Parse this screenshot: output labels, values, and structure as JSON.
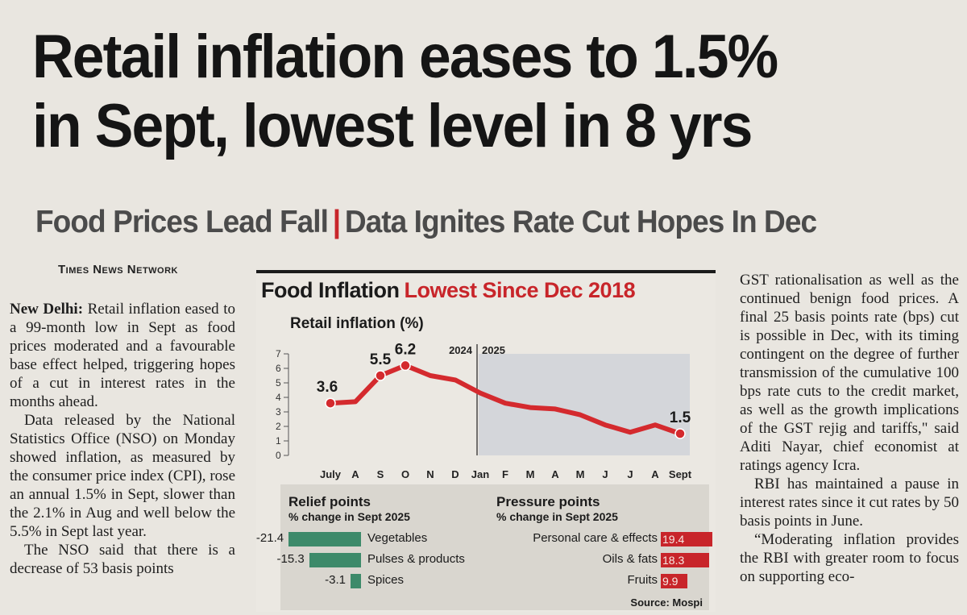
{
  "headline": {
    "line1": "Retail inflation eases to 1.5%",
    "line2": "in Sept, lowest level in 8 yrs"
  },
  "deck": {
    "left": "Food Prices Lead Fall",
    "separator": "|",
    "right": "Data Ignites Rate Cut Hopes In Dec"
  },
  "byline": "Times News Network",
  "left_column": {
    "dateline": "New Delhi:",
    "p1": " Retail inflation eased to a 99-month low in Sept as food prices moderated and a favourable base effect helped, triggering hopes of a cut in interest rates in the months ahead.",
    "p2": "Data released by the National Statistics Office (NSO) on Monday showed inflation, as measured by the consumer price index (CPI), rose an annual 1.5% in Sept, slower than the 2.1% in Aug and well below the 5.5% in Sept last year.",
    "p3": "The NSO said that there is a decrease of 53 basis points"
  },
  "right_column": {
    "p1": "GST rationalisation as well as the continued benign food prices. A final 25 basis points rate (bps) cut is possible in Dec, with its timing contingent on the degree of further transmission of the cumulative 100 bps rate cuts to the credit market, as well as the growth implications of the GST rejig and tariffs,\" said Aditi Nayar, chief economist at ratings agency Icra.",
    "p2": "RBI has maintained a pause in interest rates since it cut rates by 50 basis points in June.",
    "p3": "“Moderating inflation provides the RBI with greater room to focus on supporting eco-"
  },
  "graphic": {
    "title_dark": "Food Inflation",
    "title_red": "Lowest Since Dec 2018",
    "subtitle": "Retail inflation (%)",
    "year_left": "2024",
    "year_right": "2025",
    "source": "Source: Mospi",
    "colors": {
      "line": "#d42a2e",
      "shade": "#d4d6da",
      "relief": "#3d8a6a",
      "pressure": "#c8252a"
    }
  },
  "chart_data": {
    "type": "line",
    "title": "Retail inflation (%)",
    "xlabel": "",
    "ylabel": "",
    "ylim": [
      0,
      7
    ],
    "yticks": [
      0,
      1,
      2,
      3,
      4,
      5,
      6,
      7
    ],
    "categories": [
      "July",
      "A",
      "S",
      "O",
      "N",
      "D",
      "Jan",
      "F",
      "M",
      "A",
      "M",
      "J",
      "J",
      "A",
      "Sept"
    ],
    "series": [
      {
        "name": "Retail inflation",
        "values": [
          3.6,
          3.7,
          5.5,
          6.2,
          5.5,
          5.2,
          4.3,
          3.6,
          3.3,
          3.2,
          2.8,
          2.1,
          1.6,
          2.1,
          1.5
        ]
      }
    ],
    "data_labels": [
      {
        "index": 0,
        "text": "3.6"
      },
      {
        "index": 2,
        "text": "5.5"
      },
      {
        "index": 3,
        "text": "6.2"
      },
      {
        "index": 14,
        "text": "1.5"
      }
    ],
    "shaded_from_index": 6
  },
  "relief": {
    "title": "Relief points",
    "subtitle": "% change in Sept 2025",
    "items": [
      {
        "value": -21.4,
        "label": "-21.4",
        "name": "Vegetables"
      },
      {
        "value": -15.3,
        "label": "-15.3",
        "name": "Pulses & products"
      },
      {
        "value": -3.1,
        "label": "-3.1",
        "name": "Spices"
      }
    ]
  },
  "pressure": {
    "title": "Pressure points",
    "subtitle": "% change in Sept 2025",
    "items": [
      {
        "value": 19.4,
        "label": "19.4",
        "name": "Personal care & effects"
      },
      {
        "value": 18.3,
        "label": "18.3",
        "name": "Oils & fats"
      },
      {
        "value": 9.9,
        "label": "9.9",
        "name": "Fruits"
      }
    ]
  }
}
